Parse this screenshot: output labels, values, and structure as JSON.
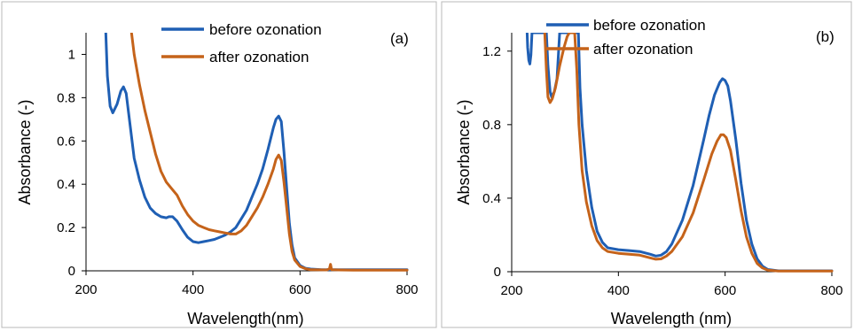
{
  "chart_data": [
    {
      "type": "line",
      "panel_label": "(a)",
      "xlabel": "Wavelength(nm)",
      "ylabel": "Absorbance (-)",
      "xlim": [
        200,
        800
      ],
      "ylim": [
        0,
        1.1
      ],
      "xticks": [
        200,
        400,
        600,
        800
      ],
      "yticks": [
        0,
        0.2,
        0.4,
        0.6,
        0.8,
        1
      ],
      "ytick_labels": [
        "0",
        "0.2",
        "0.4",
        "0.6",
        "0.8",
        "1"
      ],
      "grid": false,
      "legend_position": "top-center",
      "series": [
        {
          "name": "before ozonation",
          "color": "#1f5fb4",
          "points": [
            [
              237,
              1.1
            ],
            [
              240,
              0.9
            ],
            [
              245,
              0.76
            ],
            [
              250,
              0.73
            ],
            [
              258,
              0.77
            ],
            [
              265,
              0.83
            ],
            [
              270,
              0.85
            ],
            [
              275,
              0.82
            ],
            [
              282,
              0.68
            ],
            [
              290,
              0.52
            ],
            [
              300,
              0.42
            ],
            [
              310,
              0.34
            ],
            [
              320,
              0.29
            ],
            [
              330,
              0.265
            ],
            [
              340,
              0.25
            ],
            [
              350,
              0.245
            ],
            [
              355,
              0.25
            ],
            [
              362,
              0.25
            ],
            [
              370,
              0.23
            ],
            [
              380,
              0.19
            ],
            [
              390,
              0.155
            ],
            [
              400,
              0.135
            ],
            [
              410,
              0.13
            ],
            [
              420,
              0.135
            ],
            [
              430,
              0.14
            ],
            [
              440,
              0.145
            ],
            [
              450,
              0.155
            ],
            [
              460,
              0.165
            ],
            [
              470,
              0.18
            ],
            [
              480,
              0.2
            ],
            [
              490,
              0.24
            ],
            [
              500,
              0.28
            ],
            [
              510,
              0.34
            ],
            [
              520,
              0.4
            ],
            [
              530,
              0.47
            ],
            [
              540,
              0.56
            ],
            [
              550,
              0.66
            ],
            [
              555,
              0.7
            ],
            [
              560,
              0.715
            ],
            [
              565,
              0.69
            ],
            [
              570,
              0.55
            ],
            [
              575,
              0.38
            ],
            [
              580,
              0.22
            ],
            [
              585,
              0.12
            ],
            [
              590,
              0.06
            ],
            [
              600,
              0.025
            ],
            [
              610,
              0.012
            ],
            [
              620,
              0.008
            ],
            [
              640,
              0.005
            ],
            [
              700,
              0.005
            ],
            [
              800,
              0.005
            ]
          ]
        },
        {
          "name": "after ozonation",
          "color": "#c5631a",
          "points": [
            [
              285,
              1.1
            ],
            [
              290,
              1.0
            ],
            [
              300,
              0.86
            ],
            [
              310,
              0.74
            ],
            [
              320,
              0.64
            ],
            [
              330,
              0.54
            ],
            [
              340,
              0.46
            ],
            [
              350,
              0.41
            ],
            [
              360,
              0.38
            ],
            [
              370,
              0.35
            ],
            [
              380,
              0.3
            ],
            [
              390,
              0.26
            ],
            [
              400,
              0.23
            ],
            [
              410,
              0.21
            ],
            [
              420,
              0.2
            ],
            [
              430,
              0.19
            ],
            [
              440,
              0.185
            ],
            [
              450,
              0.18
            ],
            [
              460,
              0.175
            ],
            [
              470,
              0.17
            ],
            [
              480,
              0.17
            ],
            [
              490,
              0.185
            ],
            [
              500,
              0.21
            ],
            [
              510,
              0.25
            ],
            [
              520,
              0.29
            ],
            [
              530,
              0.34
            ],
            [
              540,
              0.4
            ],
            [
              550,
              0.47
            ],
            [
              555,
              0.515
            ],
            [
              560,
              0.535
            ],
            [
              565,
              0.51
            ],
            [
              570,
              0.41
            ],
            [
              575,
              0.29
            ],
            [
              580,
              0.17
            ],
            [
              585,
              0.09
            ],
            [
              590,
              0.05
            ],
            [
              600,
              0.02
            ],
            [
              610,
              0.01
            ],
            [
              620,
              0.005
            ],
            [
              650,
              0.004
            ],
            [
              655,
              0.01
            ],
            [
              657,
              0.03
            ],
            [
              659,
              0.005
            ],
            [
              700,
              0.003
            ],
            [
              800,
              0.003
            ]
          ]
        }
      ]
    },
    {
      "type": "line",
      "panel_label": "(b)",
      "xlabel": "Wavelength (nm)",
      "ylabel": "Absorbance (-)",
      "xlim": [
        200,
        800
      ],
      "ylim": [
        0,
        1.3
      ],
      "xticks": [
        200,
        400,
        600,
        800
      ],
      "yticks": [
        0,
        0.4,
        0.8,
        1.2
      ],
      "ytick_labels": [
        "0",
        "0.4",
        "0.8",
        "1.2"
      ],
      "grid": false,
      "legend_position": "top-center",
      "series": [
        {
          "name": "before ozonation",
          "color": "#1f5fb4",
          "points": [
            [
              229,
              1.3
            ],
            [
              230,
              1.22
            ],
            [
              232,
              1.15
            ],
            [
              234,
              1.13
            ],
            [
              236,
              1.18
            ],
            [
              238,
              1.3
            ],
            [
              265,
              1.3
            ],
            [
              268,
              1.12
            ],
            [
              272,
              0.98
            ],
            [
              275,
              0.95
            ],
            [
              280,
              0.98
            ],
            [
              285,
              1.05
            ],
            [
              288,
              1.2
            ],
            [
              290,
              1.3
            ],
            [
              325,
              1.3
            ],
            [
              328,
              1.0
            ],
            [
              332,
              0.8
            ],
            [
              340,
              0.55
            ],
            [
              350,
              0.35
            ],
            [
              360,
              0.22
            ],
            [
              370,
              0.16
            ],
            [
              380,
              0.13
            ],
            [
              400,
              0.12
            ],
            [
              420,
              0.115
            ],
            [
              440,
              0.11
            ],
            [
              460,
              0.095
            ],
            [
              470,
              0.085
            ],
            [
              480,
              0.09
            ],
            [
              490,
              0.11
            ],
            [
              500,
              0.15
            ],
            [
              520,
              0.28
            ],
            [
              540,
              0.47
            ],
            [
              560,
              0.72
            ],
            [
              570,
              0.85
            ],
            [
              580,
              0.96
            ],
            [
              590,
              1.03
            ],
            [
              595,
              1.05
            ],
            [
              600,
              1.04
            ],
            [
              605,
              1.01
            ],
            [
              610,
              0.93
            ],
            [
              620,
              0.72
            ],
            [
              630,
              0.48
            ],
            [
              640,
              0.28
            ],
            [
              650,
              0.15
            ],
            [
              660,
              0.07
            ],
            [
              670,
              0.03
            ],
            [
              680,
              0.012
            ],
            [
              700,
              0.005
            ],
            [
              800,
              0.005
            ]
          ]
        },
        {
          "name": "after ozonation",
          "color": "#c5631a",
          "points": [
            [
              262,
              1.3
            ],
            [
              265,
              1.1
            ],
            [
              268,
              0.95
            ],
            [
              272,
              0.92
            ],
            [
              276,
              0.94
            ],
            [
              282,
              1.0
            ],
            [
              290,
              1.12
            ],
            [
              298,
              1.22
            ],
            [
              304,
              1.28
            ],
            [
              308,
              1.3
            ],
            [
              318,
              1.3
            ],
            [
              322,
              1.1
            ],
            [
              326,
              0.8
            ],
            [
              332,
              0.55
            ],
            [
              340,
              0.38
            ],
            [
              350,
              0.25
            ],
            [
              360,
              0.17
            ],
            [
              370,
              0.13
            ],
            [
              380,
              0.11
            ],
            [
              400,
              0.1
            ],
            [
              420,
              0.095
            ],
            [
              440,
              0.09
            ],
            [
              460,
              0.075
            ],
            [
              470,
              0.068
            ],
            [
              480,
              0.07
            ],
            [
              490,
              0.085
            ],
            [
              500,
              0.11
            ],
            [
              520,
              0.19
            ],
            [
              540,
              0.32
            ],
            [
              560,
              0.5
            ],
            [
              575,
              0.64
            ],
            [
              585,
              0.71
            ],
            [
              592,
              0.745
            ],
            [
              597,
              0.745
            ],
            [
              602,
              0.73
            ],
            [
              610,
              0.66
            ],
            [
              620,
              0.5
            ],
            [
              630,
              0.33
            ],
            [
              640,
              0.19
            ],
            [
              650,
              0.1
            ],
            [
              660,
              0.045
            ],
            [
              670,
              0.02
            ],
            [
              680,
              0.008
            ],
            [
              700,
              0.004
            ],
            [
              800,
              0.004
            ]
          ]
        }
      ]
    }
  ]
}
